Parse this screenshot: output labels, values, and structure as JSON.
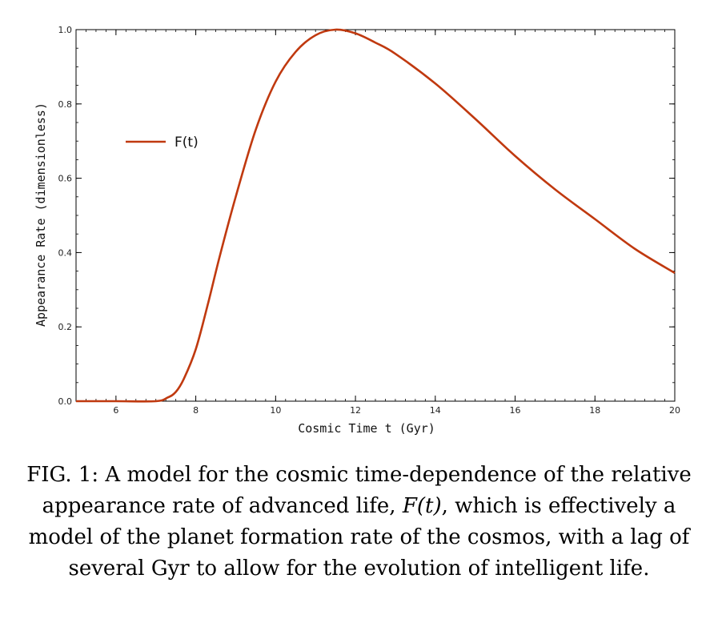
{
  "chart_data": {
    "type": "line",
    "xlabel": "Cosmic Time t (Gyr)",
    "ylabel": "Appearance Rate (dimensionless)",
    "xlim": [
      5,
      20
    ],
    "ylim": [
      0,
      1.0
    ],
    "x_ticks": [
      6,
      8,
      10,
      12,
      14,
      16,
      18,
      20
    ],
    "y_ticks": [
      0.0,
      0.2,
      0.4,
      0.6,
      0.8,
      1.0
    ],
    "x_tick_labels": [
      "6",
      "8",
      "10",
      "12",
      "14",
      "16",
      "18",
      "20"
    ],
    "y_tick_labels": [
      "0.0",
      "0.2",
      "0.4",
      "0.6",
      "0.8",
      "1.0"
    ],
    "grid": false,
    "legend_position": "upper-left",
    "series": [
      {
        "name": "F(t)",
        "color": "#c0390f",
        "x": [
          5.0,
          6.0,
          7.0,
          7.3,
          7.5,
          7.7,
          8.0,
          8.3,
          8.6,
          9.0,
          9.5,
          10.0,
          10.5,
          11.0,
          11.5,
          12.0,
          12.5,
          13.0,
          14.0,
          15.0,
          16.0,
          17.0,
          18.0,
          19.0,
          20.0
        ],
        "y": [
          0.0,
          0.0,
          0.0,
          0.01,
          0.025,
          0.06,
          0.14,
          0.26,
          0.39,
          0.55,
          0.73,
          0.86,
          0.94,
          0.985,
          1.0,
          0.99,
          0.965,
          0.935,
          0.855,
          0.76,
          0.66,
          0.57,
          0.49,
          0.41,
          0.345
        ]
      }
    ]
  },
  "caption": {
    "prefix": "FIG. 1: A model for the cosmic time-dependence of the relative appearance rate of advanced life, ",
    "math": "F(t)",
    "suffix": ", which is effectively a model of the planet formation rate of the cosmos, with a lag of several Gyr to allow for the evolution of intelligent life."
  }
}
